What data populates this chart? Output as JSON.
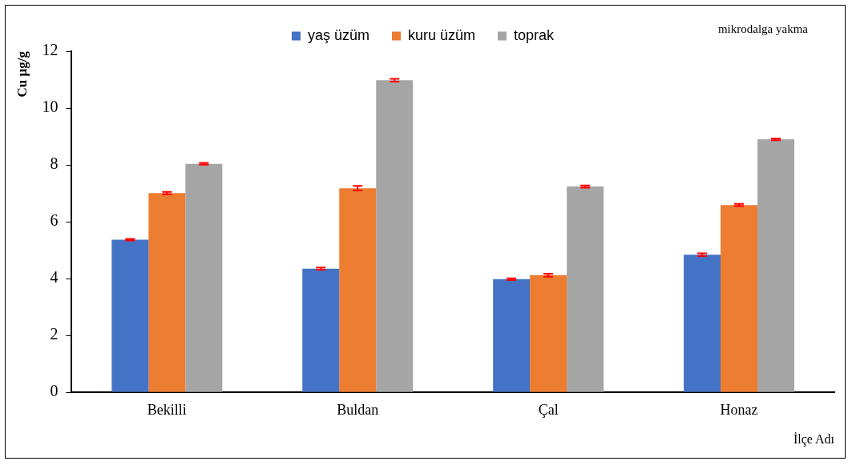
{
  "chart_data": {
    "type": "bar",
    "ylabel": "Cu µg/g",
    "xlabel": "İlçe Adı",
    "annotations": [
      "mikrodalga yakma"
    ],
    "categories": [
      "Bekilli",
      "Buldan",
      "Çal",
      "Honaz"
    ],
    "series": [
      {
        "name": "yaş üzüm",
        "color": "#4472c4",
        "values": [
          5.37,
          4.35,
          3.98,
          4.84
        ],
        "errors": [
          0.03,
          0.04,
          0.03,
          0.05
        ]
      },
      {
        "name": "kuru üzüm",
        "color": "#ed7d31",
        "values": [
          7.01,
          7.18,
          4.12,
          6.59
        ],
        "errors": [
          0.04,
          0.08,
          0.05,
          0.04
        ]
      },
      {
        "name": "toprak",
        "color": "#a5a5a5",
        "values": [
          8.04,
          10.98,
          7.24,
          8.9
        ],
        "errors": [
          0.03,
          0.05,
          0.04,
          0.03
        ]
      }
    ],
    "ylim": [
      0,
      12
    ],
    "yticks": [
      0,
      2,
      4,
      6,
      8,
      10,
      12
    ],
    "grid": false,
    "legend": "top"
  }
}
